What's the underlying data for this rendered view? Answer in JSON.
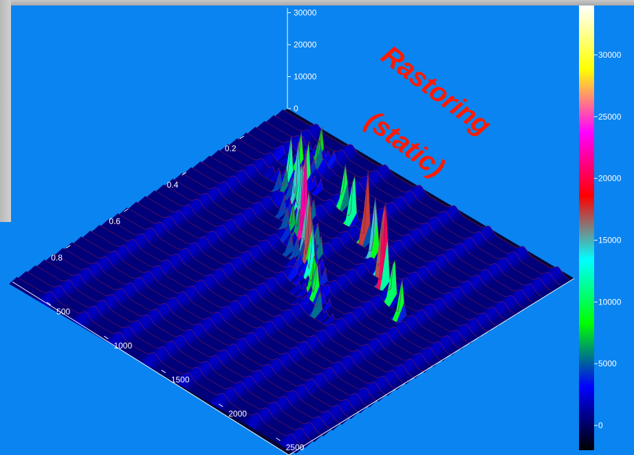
{
  "overlay_text": {
    "line1": "Rastoring",
    "line2": "(static)"
  },
  "chart_data": {
    "type": "surface3d",
    "title": "",
    "x_axis": {
      "label": "",
      "ticks": [
        500,
        1000,
        1500,
        2000,
        2500
      ],
      "range": [
        200,
        2700
      ]
    },
    "y_axis": {
      "label": "",
      "ticks": [
        0.2,
        0.4,
        0.6,
        0.8
      ],
      "range": [
        0.05,
        1.0
      ]
    },
    "z_axis": {
      "label": "",
      "ticks": [
        0,
        10000,
        20000,
        30000
      ],
      "range": [
        0,
        32000
      ]
    },
    "colorbar": {
      "ticks": [
        0,
        5000,
        10000,
        15000,
        20000,
        25000,
        30000
      ],
      "range": [
        -2000,
        34000
      ],
      "colormap": [
        "#000000",
        "#0000ff",
        "#00ff00",
        "#00ffff",
        "#ff0000",
        "#ff00ff",
        "#ffff00",
        "#ffffff"
      ]
    },
    "n_rows": 30,
    "peaks": [
      {
        "row": 2,
        "x": 700,
        "value": 6500
      },
      {
        "row": 3,
        "x": 760,
        "value": 7000
      },
      {
        "row": 4,
        "x": 680,
        "value": 8000
      },
      {
        "row": 5,
        "x": 820,
        "value": 9500
      },
      {
        "row": 5,
        "x": 1150,
        "value": 12000
      },
      {
        "row": 6,
        "x": 750,
        "value": 11000
      },
      {
        "row": 6,
        "x": 1300,
        "value": 16000
      },
      {
        "row": 7,
        "x": 900,
        "value": 14000
      },
      {
        "row": 7,
        "x": 1500,
        "value": 22000
      },
      {
        "row": 8,
        "x": 1000,
        "value": 12000
      },
      {
        "row": 8,
        "x": 1650,
        "value": 18000
      },
      {
        "row": 9,
        "x": 1100,
        "value": 16000
      },
      {
        "row": 9,
        "x": 1800,
        "value": 24000
      },
      {
        "row": 10,
        "x": 1200,
        "value": 20000
      },
      {
        "row": 10,
        "x": 1900,
        "value": 26000
      },
      {
        "row": 11,
        "x": 1300,
        "value": 18000
      },
      {
        "row": 11,
        "x": 2050,
        "value": 14000
      },
      {
        "row": 12,
        "x": 1400,
        "value": 15000
      },
      {
        "row": 12,
        "x": 2200,
        "value": 11000
      },
      {
        "row": 13,
        "x": 1500,
        "value": 12000
      },
      {
        "row": 14,
        "x": 1600,
        "value": 9000
      },
      {
        "row": 15,
        "x": 1700,
        "value": 7000
      },
      {
        "row": 16,
        "x": 1800,
        "value": 6000
      }
    ],
    "baseline_bumps": [
      500,
      800,
      1100,
      1400,
      1700,
      2000,
      2300,
      2600
    ]
  }
}
